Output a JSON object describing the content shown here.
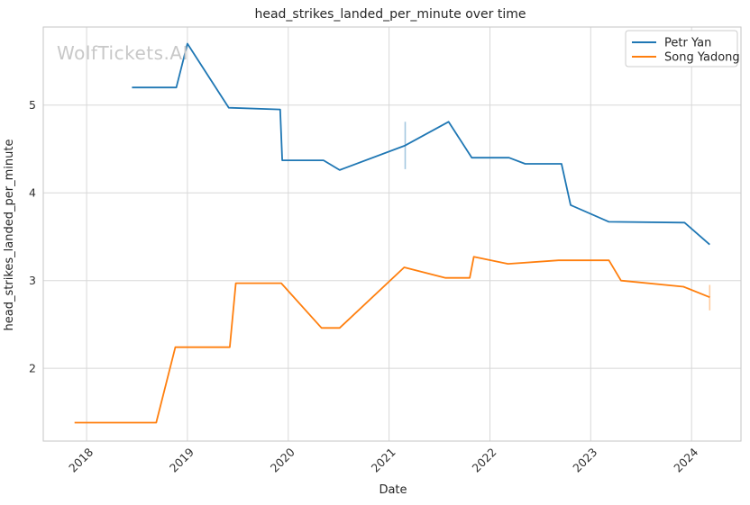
{
  "watermark": "WolfTickets.AI",
  "chart_data": {
    "type": "line",
    "title": "head_strikes_landed_per_minute over time",
    "xlabel": "Date",
    "ylabel": "head_strikes_landed_per_minute",
    "watermark": "WolfTickets.AI",
    "grid": true,
    "legend_position": "upper right",
    "x_ticks": [
      2018,
      2019,
      2020,
      2021,
      2022,
      2023,
      2024
    ],
    "y_ticks": [
      2,
      3,
      4,
      5
    ],
    "xlim": [
      2017.57,
      2024.49
    ],
    "ylim": [
      1.17,
      5.89
    ],
    "series": [
      {
        "name": "Petr Yan",
        "color": "#1f77b4",
        "points": [
          [
            2018.45,
            5.2
          ],
          [
            2018.89,
            5.2
          ],
          [
            2019.0,
            5.7
          ],
          [
            2019.41,
            4.97
          ],
          [
            2019.92,
            4.95
          ],
          [
            2019.94,
            4.37
          ],
          [
            2020.35,
            4.37
          ],
          [
            2020.51,
            4.26
          ],
          [
            2021.16,
            4.54
          ],
          [
            2021.59,
            4.81
          ],
          [
            2021.82,
            4.4
          ],
          [
            2022.19,
            4.4
          ],
          [
            2022.35,
            4.33
          ],
          [
            2022.71,
            4.33
          ],
          [
            2022.8,
            3.86
          ],
          [
            2023.18,
            3.67
          ],
          [
            2023.93,
            3.66
          ],
          [
            2024.18,
            3.41
          ]
        ],
        "error_bar": {
          "x": 2021.16,
          "y_low": 4.27,
          "y_high": 4.81
        }
      },
      {
        "name": "Song Yadong",
        "color": "#ff7f0e",
        "points": [
          [
            2017.88,
            1.38
          ],
          [
            2018.69,
            1.38
          ],
          [
            2018.88,
            2.24
          ],
          [
            2019.42,
            2.24
          ],
          [
            2019.48,
            2.97
          ],
          [
            2019.93,
            2.97
          ],
          [
            2020.33,
            2.46
          ],
          [
            2020.51,
            2.46
          ],
          [
            2021.15,
            3.15
          ],
          [
            2021.56,
            3.03
          ],
          [
            2021.8,
            3.03
          ],
          [
            2021.84,
            3.27
          ],
          [
            2022.18,
            3.19
          ],
          [
            2022.68,
            3.23
          ],
          [
            2023.18,
            3.23
          ],
          [
            2023.3,
            3.0
          ],
          [
            2023.92,
            2.93
          ],
          [
            2024.18,
            2.81
          ]
        ],
        "error_bar": {
          "x": 2024.18,
          "y_low": 2.66,
          "y_high": 2.95
        }
      }
    ]
  }
}
